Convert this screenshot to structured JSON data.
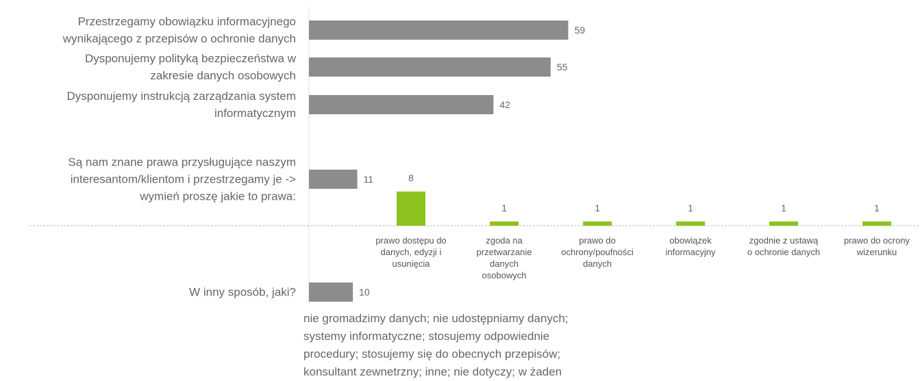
{
  "chart_data": [
    {
      "type": "hbar",
      "categories": [
        "Przestrzegamy obowiązku informacyjnego\nwynikającego z przepisów o ochronie danych",
        "Dysponujemy polityką bezpieczeństwa w\nzakresie danych osobowych",
        "Dysponujemy instrukcją zarządzania system\ninformatycznym",
        "Są nam znane prawa przysługujące naszym\ninteresantom/klientom i przestrzegamy je ->\nwymień proszę jakie to prawa:",
        "W inny sposób, jaki?"
      ],
      "values": [
        59,
        55,
        42,
        11,
        10
      ],
      "color": "#8c8c8c",
      "xlim": [
        0,
        70
      ],
      "annotation": "nie gromadzimy danych; nie udostępniamy danych;\nsystemy informatyczne; stosujemy odpowiednie\nprocedury; stosujemy się do obecnych przepisów;\nkonsultant zewnetrzny; inne; nie dotyczy; w żaden"
    },
    {
      "type": "bar",
      "categories": [
        "prawo dostępu do\ndanych, edyzji i\nusunięcia",
        "zgoda na\nprzetwarzanie\ndanych\nosobowych",
        "prawo do\nochrony/poufności\ndanych",
        "obowiązek\ninformacyjny",
        "zgodnie z ustawą\no ochronie danych",
        "prawo do ocrony\nwizerunku"
      ],
      "values": [
        8,
        1,
        1,
        1,
        1,
        1
      ],
      "color": "#8dc21f",
      "ylim": [
        0,
        10
      ]
    }
  ]
}
